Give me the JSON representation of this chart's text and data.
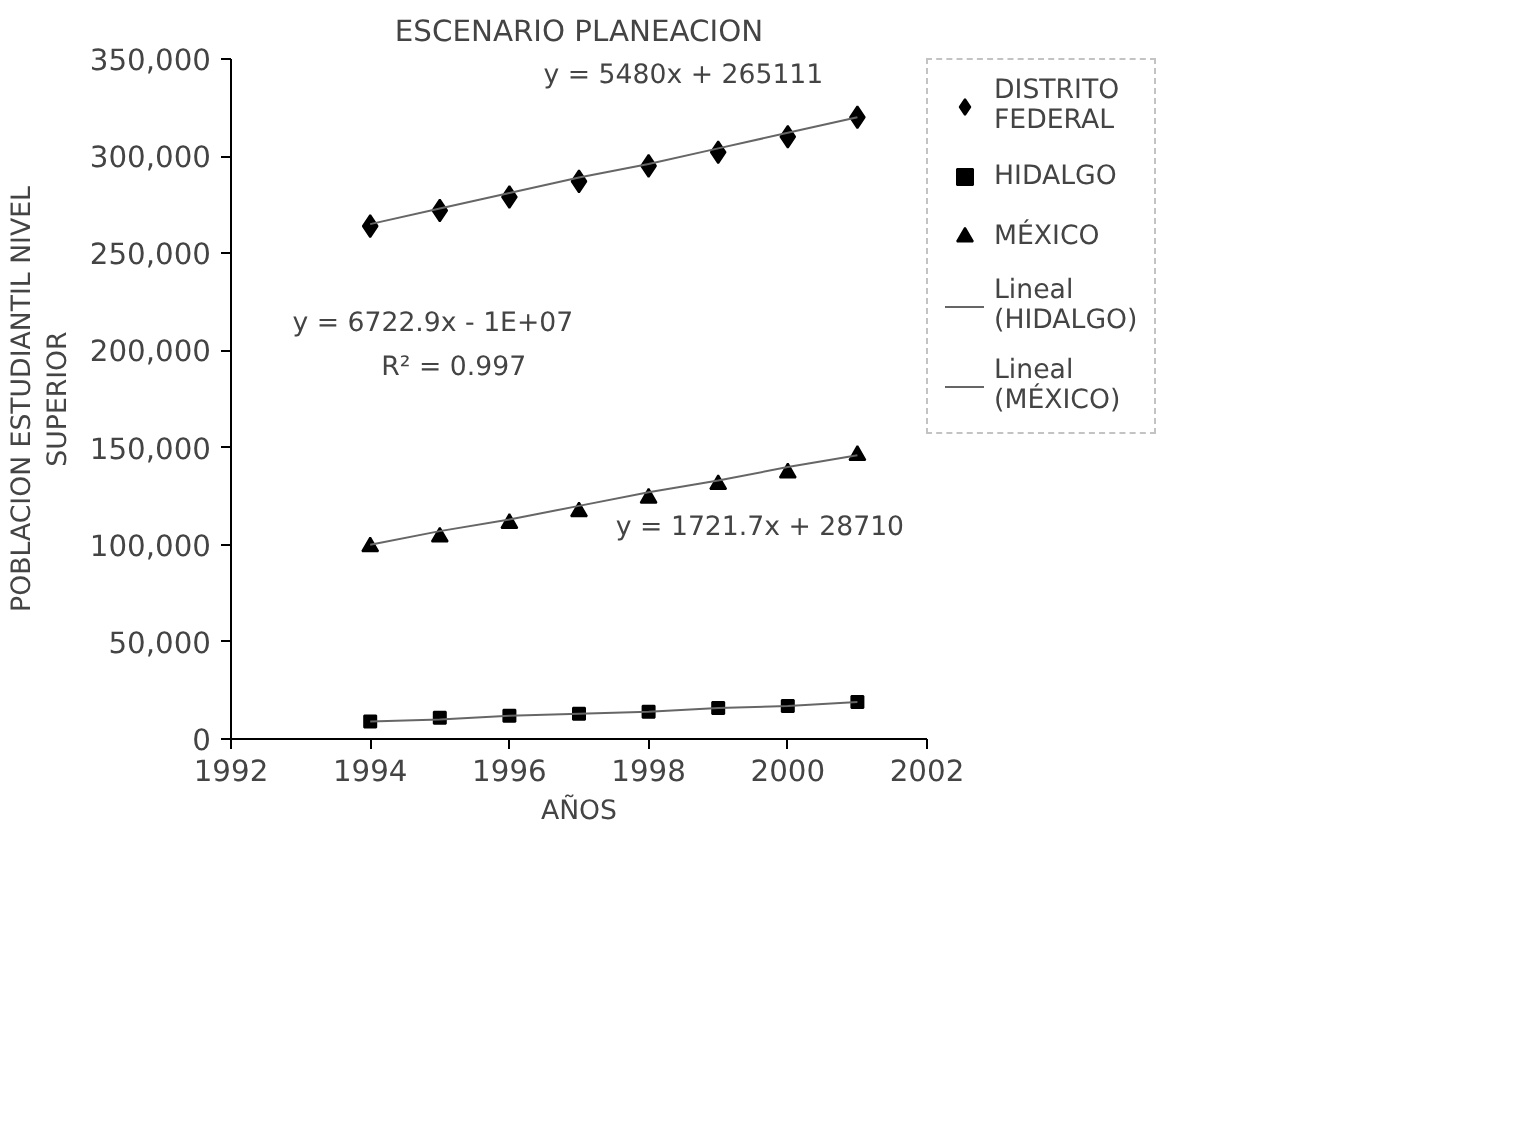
{
  "chart_data": {
    "type": "scatter",
    "title": "ESCENARIO PLANEACION",
    "xlabel": "AÑOS",
    "ylabel": "POBLACION ESTUDIANTIL NIVEL SUPERIOR",
    "x": [
      1994,
      1995,
      1996,
      1997,
      1998,
      1999,
      2000,
      2001
    ],
    "series": [
      {
        "name": "DISTRITO FEDERAL",
        "color": "#000000",
        "marker": "diamond",
        "values": [
          264000,
          272000,
          279000,
          287000,
          295000,
          302000,
          310000,
          320000
        ]
      },
      {
        "name": "HIDALGO",
        "color": "#000000",
        "marker": "square",
        "values": [
          9000,
          11000,
          12000,
          13000,
          14000,
          16000,
          17000,
          19000
        ]
      },
      {
        "name": "MÉXICO",
        "color": "#000000",
        "marker": "triangle",
        "values": [
          99000,
          104000,
          111000,
          117000,
          124000,
          131000,
          137000,
          146000
        ]
      },
      {
        "name": "Lineal (HIDALGO)",
        "type": "line",
        "color": "#666666",
        "values": [
          9000,
          10000,
          12000,
          13000,
          14000,
          16000,
          17000,
          19000
        ]
      },
      {
        "name": "Lineal (MÉXICO)",
        "type": "line",
        "color": "#666666",
        "values": [
          100000,
          107000,
          113000,
          120000,
          127000,
          133000,
          140000,
          146000
        ]
      },
      {
        "type": "line",
        "color": "#666666",
        "values": [
          265000,
          273000,
          281000,
          289000,
          296000,
          304000,
          312000,
          320000
        ]
      }
    ],
    "annotations": [
      "y = 5480x + 265111",
      "y = 6722.9x - 1E+07",
      "R² = 0.997",
      "y = 1721.7x + 28710"
    ],
    "xlim": [
      1992,
      2002
    ],
    "xticks": [
      1992,
      1994,
      1996,
      1998,
      2000,
      2002
    ],
    "ylim": [
      0,
      350000
    ],
    "yticks": [
      {
        "value": 0,
        "label": "0"
      },
      {
        "value": 50000,
        "label": "50,000"
      },
      {
        "value": 100000,
        "label": "100,000"
      },
      {
        "value": 150000,
        "label": "150,000"
      },
      {
        "value": 200000,
        "label": "200,000"
      },
      {
        "value": 250000,
        "label": "250,000"
      },
      {
        "value": 300000,
        "label": "300,000"
      },
      {
        "value": 350000,
        "label": "350,000"
      }
    ],
    "grid": false,
    "legend": "right"
  }
}
